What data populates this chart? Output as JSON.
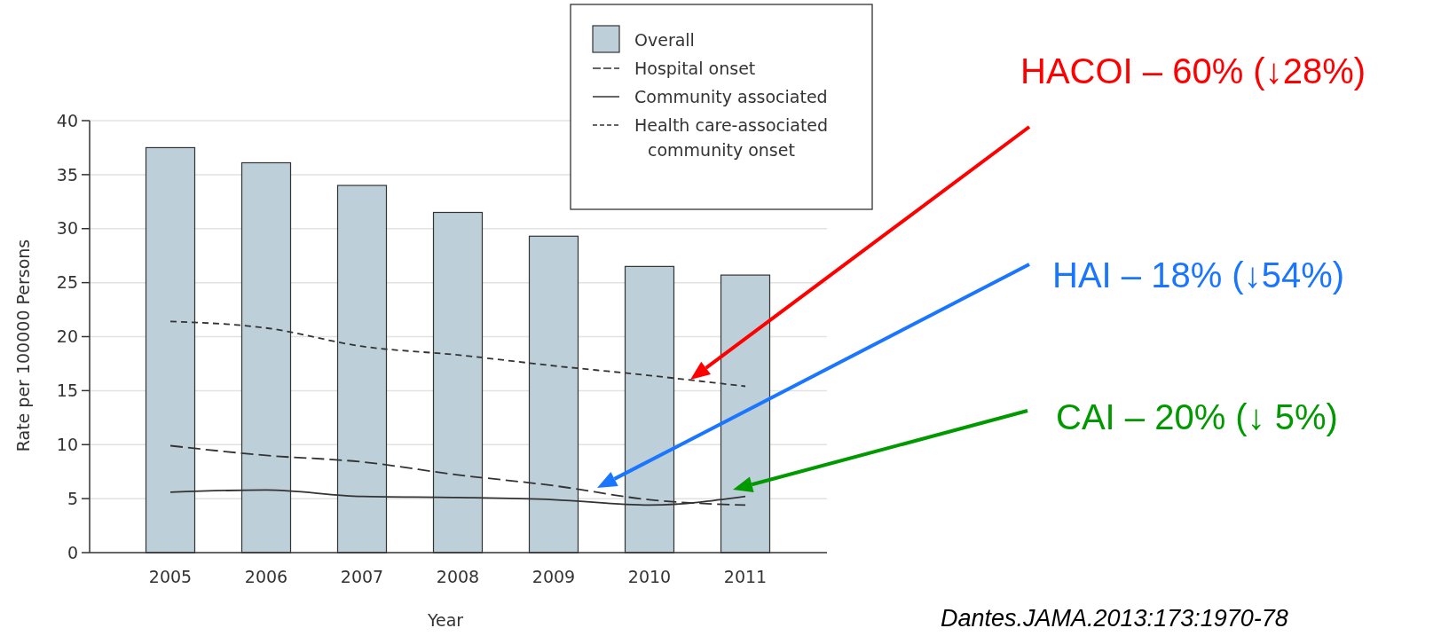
{
  "chart_data": {
    "type": "bar",
    "xlabel": "Year",
    "ylabel": "Rate per 100000 Persons",
    "categories": [
      "2005",
      "2006",
      "2007",
      "2008",
      "2009",
      "2010",
      "2011"
    ],
    "series": [
      {
        "name": "Overall",
        "type": "bar",
        "color": "#bdcfd9",
        "values": [
          37.5,
          36.1,
          34.0,
          31.5,
          29.3,
          26.5,
          25.7
        ]
      },
      {
        "name": "Hospital onset",
        "type": "line",
        "color": "#333333",
        "line_style": "dashed",
        "values": [
          9.9,
          9.0,
          8.4,
          7.2,
          6.2,
          4.9,
          4.4
        ]
      },
      {
        "name": "Community associated",
        "type": "line",
        "color": "#333333",
        "line_style": "solid",
        "values": [
          5.6,
          5.8,
          5.2,
          5.1,
          4.9,
          4.4,
          5.2
        ]
      },
      {
        "name": "Health care-associated community onset",
        "type": "line",
        "color": "#333333",
        "line_style": "dashed",
        "values": [
          21.4,
          20.8,
          19.1,
          18.3,
          17.3,
          16.4,
          15.4
        ]
      }
    ],
    "ylim": [
      0,
      40
    ],
    "yticks": [
      0,
      5,
      10,
      15,
      20,
      25,
      30,
      35,
      40
    ],
    "grid": "y",
    "legend": "top right",
    "marker": "none",
    "annotations": [
      "HACOI – 60% (↓28%)",
      "HAI – 18% (↓54%)",
      "CAI – 20% (↓ 5%)",
      "Dantes.JAMA.2013:173:1970-78"
    ]
  }
}
